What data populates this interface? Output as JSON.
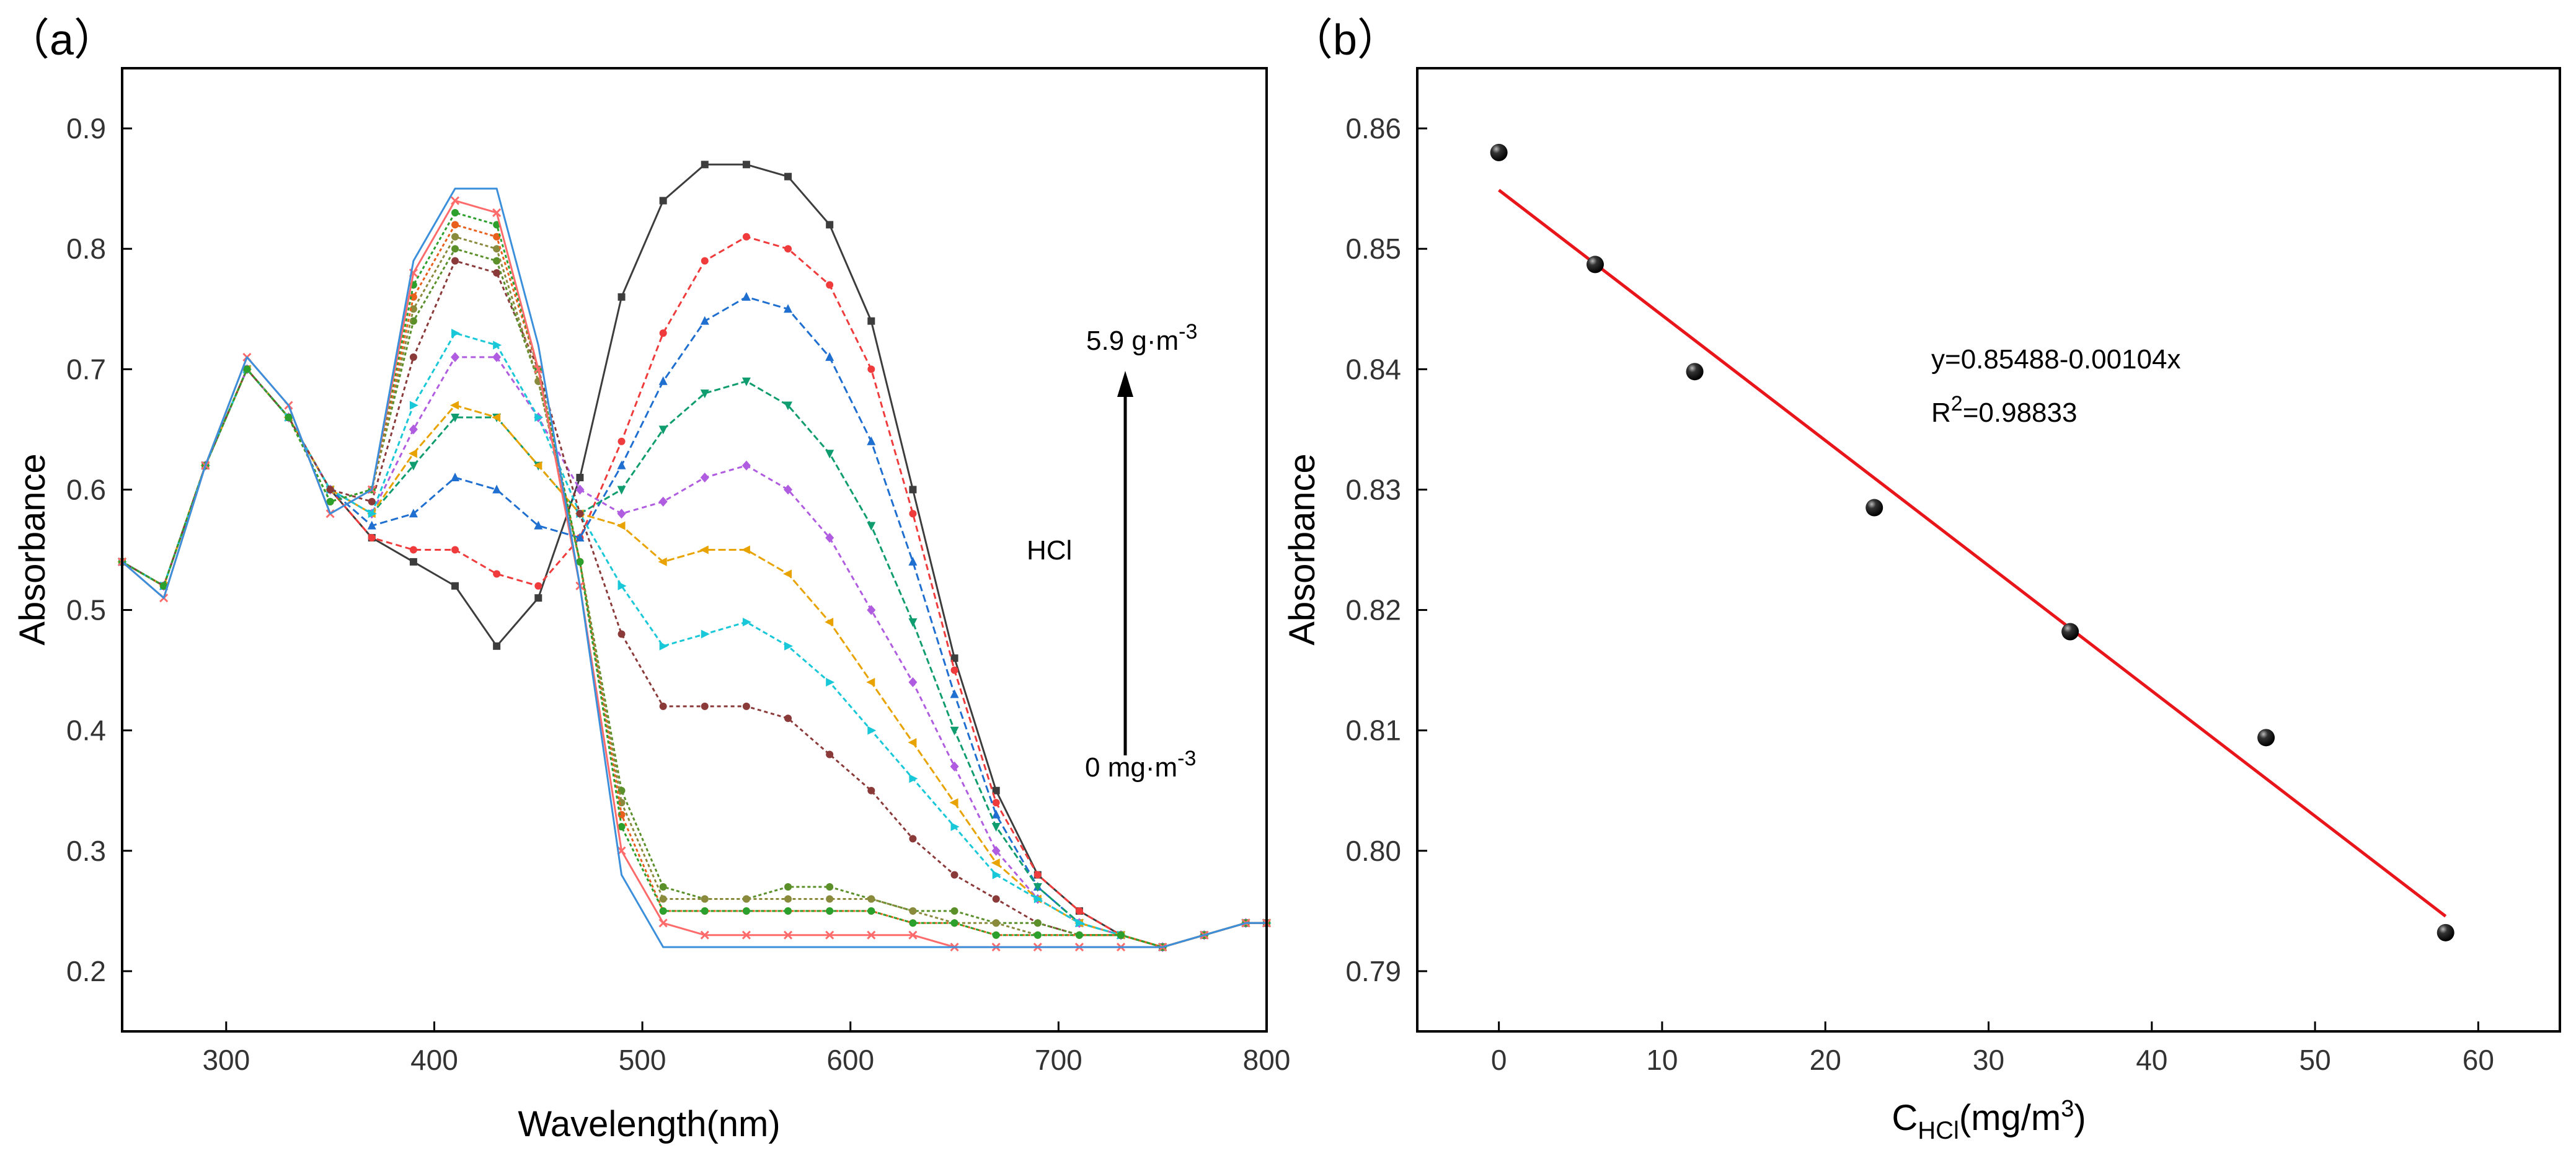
{
  "chart_data": [
    {
      "type": "line",
      "panel": "(a)",
      "panel_label": "（a）",
      "title": "",
      "xlabel": "Wavelength(nm)",
      "ylabel": "Absorbance",
      "xlim": [
        250,
        800
      ],
      "ylim": [
        0.15,
        0.95
      ],
      "xticks": [
        300,
        400,
        500,
        600,
        700,
        800
      ],
      "yticks": [
        0.2,
        0.3,
        0.4,
        0.5,
        0.6,
        0.7,
        0.8,
        0.9
      ],
      "annotations": {
        "top": "5.9 g·m",
        "top_sup": "-3",
        "bottom": "0 mg·m",
        "bottom_sup": "-3",
        "label": "HCl"
      },
      "x": [
        250,
        270,
        290,
        310,
        330,
        350,
        370,
        390,
        410,
        430,
        450,
        470,
        490,
        510,
        530,
        550,
        570,
        590,
        610,
        630,
        650,
        670,
        690,
        710,
        730,
        750,
        770,
        790,
        800
      ],
      "series": [
        {
          "name": "s1",
          "color": "#3d3d3d",
          "marker": "square",
          "values": [
            0.54,
            0.52,
            0.62,
            0.7,
            0.66,
            0.6,
            0.56,
            0.54,
            0.52,
            0.47,
            0.51,
            0.61,
            0.76,
            0.84,
            0.87,
            0.87,
            0.86,
            0.82,
            0.74,
            0.6,
            0.46,
            0.35,
            0.28,
            0.25,
            0.23,
            0.22,
            0.23,
            0.24,
            0.24
          ]
        },
        {
          "name": "s2",
          "color": "#ef3b3b",
          "marker": "circle",
          "values": [
            0.54,
            0.52,
            0.62,
            0.7,
            0.66,
            0.6,
            0.56,
            0.55,
            0.55,
            0.53,
            0.52,
            0.56,
            0.64,
            0.73,
            0.79,
            0.81,
            0.8,
            0.77,
            0.7,
            0.58,
            0.45,
            0.34,
            0.28,
            0.25,
            0.23,
            0.22,
            0.23,
            0.24,
            0.24
          ]
        },
        {
          "name": "s3",
          "color": "#1f6fd0",
          "marker": "triangle-up",
          "values": [
            0.54,
            0.52,
            0.62,
            0.7,
            0.66,
            0.6,
            0.57,
            0.58,
            0.61,
            0.6,
            0.57,
            0.56,
            0.62,
            0.69,
            0.74,
            0.76,
            0.75,
            0.71,
            0.64,
            0.54,
            0.43,
            0.33,
            0.27,
            0.24,
            0.23,
            0.22,
            0.23,
            0.24,
            0.24
          ]
        },
        {
          "name": "s4",
          "color": "#0f9c6e",
          "marker": "triangle-down",
          "values": [
            0.54,
            0.52,
            0.62,
            0.7,
            0.66,
            0.6,
            0.58,
            0.62,
            0.66,
            0.66,
            0.62,
            0.58,
            0.6,
            0.65,
            0.68,
            0.69,
            0.67,
            0.63,
            0.57,
            0.49,
            0.4,
            0.32,
            0.27,
            0.24,
            0.23,
            0.22,
            0.23,
            0.24,
            0.24
          ]
        },
        {
          "name": "s5",
          "color": "#b05ce0",
          "marker": "diamond",
          "values": [
            0.54,
            0.52,
            0.62,
            0.7,
            0.66,
            0.6,
            0.58,
            0.65,
            0.71,
            0.71,
            0.66,
            0.6,
            0.58,
            0.59,
            0.61,
            0.62,
            0.6,
            0.56,
            0.5,
            0.44,
            0.37,
            0.3,
            0.26,
            0.24,
            0.23,
            0.22,
            0.23,
            0.24,
            0.24
          ]
        },
        {
          "name": "s6",
          "color": "#e8a300",
          "marker": "triangle-left",
          "values": [
            0.54,
            0.52,
            0.62,
            0.7,
            0.66,
            0.6,
            0.58,
            0.63,
            0.67,
            0.66,
            0.62,
            0.58,
            0.57,
            0.54,
            0.55,
            0.55,
            0.53,
            0.49,
            0.44,
            0.39,
            0.34,
            0.29,
            0.26,
            0.24,
            0.23,
            0.22,
            0.23,
            0.24,
            0.24
          ]
        },
        {
          "name": "s7",
          "color": "#18c8d8",
          "marker": "triangle-right",
          "values": [
            0.54,
            0.52,
            0.62,
            0.7,
            0.66,
            0.6,
            0.58,
            0.67,
            0.73,
            0.72,
            0.66,
            0.58,
            0.52,
            0.47,
            0.48,
            0.49,
            0.47,
            0.44,
            0.4,
            0.36,
            0.32,
            0.28,
            0.26,
            0.24,
            0.23,
            0.22,
            0.23,
            0.24,
            0.24
          ]
        },
        {
          "name": "s8",
          "color": "#8b3a3a",
          "marker": "hexagon",
          "values": [
            0.54,
            0.52,
            0.62,
            0.7,
            0.66,
            0.6,
            0.59,
            0.71,
            0.79,
            0.78,
            0.7,
            0.58,
            0.48,
            0.42,
            0.42,
            0.42,
            0.41,
            0.38,
            0.35,
            0.31,
            0.28,
            0.26,
            0.24,
            0.23,
            0.23,
            0.22,
            0.23,
            0.24,
            0.24
          ]
        },
        {
          "name": "s9",
          "color": "#5a8f29",
          "marker": "circle",
          "values": [
            0.54,
            0.52,
            0.62,
            0.7,
            0.66,
            0.59,
            0.6,
            0.74,
            0.8,
            0.79,
            0.69,
            0.54,
            0.35,
            0.27,
            0.26,
            0.26,
            0.27,
            0.27,
            0.26,
            0.25,
            0.25,
            0.24,
            0.24,
            0.23,
            0.23,
            0.22,
            0.23,
            0.24,
            0.24
          ]
        },
        {
          "name": "s10",
          "color": "#8a8a3d",
          "marker": "circle",
          "values": [
            0.54,
            0.52,
            0.62,
            0.7,
            0.66,
            0.59,
            0.6,
            0.75,
            0.81,
            0.8,
            0.69,
            0.54,
            0.34,
            0.26,
            0.26,
            0.26,
            0.26,
            0.26,
            0.26,
            0.25,
            0.24,
            0.24,
            0.23,
            0.23,
            0.23,
            0.22,
            0.23,
            0.24,
            0.24
          ]
        },
        {
          "name": "s11",
          "color": "#e8601c",
          "marker": "circle",
          "values": [
            0.54,
            0.52,
            0.62,
            0.7,
            0.66,
            0.59,
            0.6,
            0.76,
            0.82,
            0.81,
            0.7,
            0.54,
            0.33,
            0.25,
            0.25,
            0.25,
            0.25,
            0.25,
            0.25,
            0.24,
            0.24,
            0.23,
            0.23,
            0.23,
            0.23,
            0.22,
            0.23,
            0.24,
            0.24
          ]
        },
        {
          "name": "s12",
          "color": "#2ca02c",
          "marker": "circle",
          "values": [
            0.54,
            0.52,
            0.62,
            0.7,
            0.66,
            0.59,
            0.6,
            0.77,
            0.83,
            0.82,
            0.7,
            0.54,
            0.32,
            0.25,
            0.25,
            0.25,
            0.25,
            0.25,
            0.25,
            0.24,
            0.24,
            0.23,
            0.23,
            0.23,
            0.23,
            0.22,
            0.23,
            0.24,
            0.24
          ]
        },
        {
          "name": "s13",
          "color": "#ff6b6b",
          "marker": "cross",
          "values": [
            0.54,
            0.51,
            0.62,
            0.71,
            0.67,
            0.58,
            0.6,
            0.78,
            0.84,
            0.83,
            0.7,
            0.52,
            0.3,
            0.24,
            0.23,
            0.23,
            0.23,
            0.23,
            0.23,
            0.23,
            0.22,
            0.22,
            0.22,
            0.22,
            0.22,
            0.22,
            0.23,
            0.24,
            0.24
          ]
        },
        {
          "name": "s14",
          "color": "#3b8fdb",
          "marker": "none",
          "values": [
            0.54,
            0.51,
            0.62,
            0.71,
            0.67,
            0.58,
            0.6,
            0.79,
            0.85,
            0.85,
            0.72,
            0.52,
            0.28,
            0.22,
            0.22,
            0.22,
            0.22,
            0.22,
            0.22,
            0.22,
            0.22,
            0.22,
            0.22,
            0.22,
            0.22,
            0.22,
            0.23,
            0.24,
            0.24
          ]
        }
      ]
    },
    {
      "type": "scatter",
      "panel": "(b)",
      "panel_label": "（b）",
      "title": "",
      "xlabel_main": "C",
      "xlabel_sub": "HCl",
      "xlabel_rest": "(mg/m",
      "xlabel_sup": "3",
      "xlabel_close": ")",
      "ylabel": "Absorbance",
      "xlim": [
        -5,
        65
      ],
      "ylim": [
        0.785,
        0.865
      ],
      "xticks": [
        0,
        10,
        20,
        30,
        40,
        50,
        60
      ],
      "yticks": [
        0.79,
        0.8,
        0.81,
        0.82,
        0.83,
        0.84,
        0.85,
        0.86
      ],
      "ytick_labels": [
        "0.79",
        "0.80",
        "0.81",
        "0.82",
        "0.83",
        "0.84",
        "0.85",
        "0.86"
      ],
      "points": {
        "x": [
          0,
          5.9,
          12,
          23,
          35,
          47,
          58
        ],
        "y": [
          0.858,
          0.8487,
          0.8398,
          0.8285,
          0.8182,
          0.8094,
          0.7932
        ]
      },
      "fit": {
        "intercept": 0.85488,
        "slope": -0.00104,
        "x_range": [
          0,
          58
        ],
        "color": "#e8151b",
        "equation": "y=0.85488-0.00104x",
        "r2_prefix": "R",
        "r2_sup": "2",
        "r2_value": "=0.98833"
      }
    }
  ]
}
